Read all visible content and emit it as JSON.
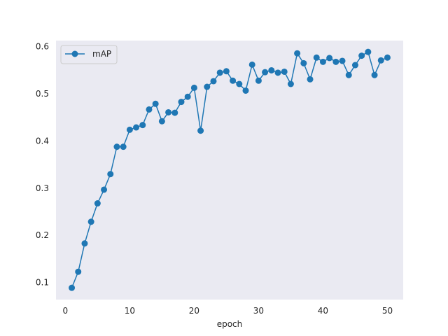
{
  "chart_data": {
    "type": "line",
    "title": "",
    "xlabel": "epoch",
    "ylabel": "",
    "xlim": [
      -1.45,
      52.45
    ],
    "ylim": [
      0.063,
      0.612
    ],
    "xticks": [
      0,
      10,
      20,
      30,
      40,
      50
    ],
    "yticks": [
      0.1,
      0.2,
      0.3,
      0.4,
      0.5,
      0.6
    ],
    "grid": false,
    "legend_position": "top-left",
    "series": [
      {
        "name": "mAP",
        "color": "#1f77b4",
        "marker": "circle",
        "x": [
          1,
          2,
          3,
          4,
          5,
          6,
          7,
          8,
          9,
          10,
          11,
          12,
          13,
          14,
          15,
          16,
          17,
          18,
          19,
          20,
          21,
          22,
          23,
          24,
          25,
          26,
          27,
          28,
          29,
          30,
          31,
          32,
          33,
          34,
          35,
          36,
          37,
          38,
          39,
          40,
          41,
          42,
          43,
          44,
          45,
          46,
          47,
          48,
          49,
          50
        ],
        "y": [
          0.088,
          0.122,
          0.182,
          0.228,
          0.267,
          0.296,
          0.329,
          0.387,
          0.387,
          0.423,
          0.428,
          0.433,
          0.466,
          0.478,
          0.441,
          0.46,
          0.459,
          0.482,
          0.493,
          0.512,
          0.421,
          0.514,
          0.526,
          0.544,
          0.547,
          0.527,
          0.52,
          0.506,
          0.561,
          0.527,
          0.545,
          0.549,
          0.544,
          0.546,
          0.52,
          0.585,
          0.564,
          0.53,
          0.576,
          0.567,
          0.575,
          0.567,
          0.569,
          0.539,
          0.56,
          0.58,
          0.588,
          0.539,
          0.57,
          0.576
        ]
      }
    ]
  }
}
